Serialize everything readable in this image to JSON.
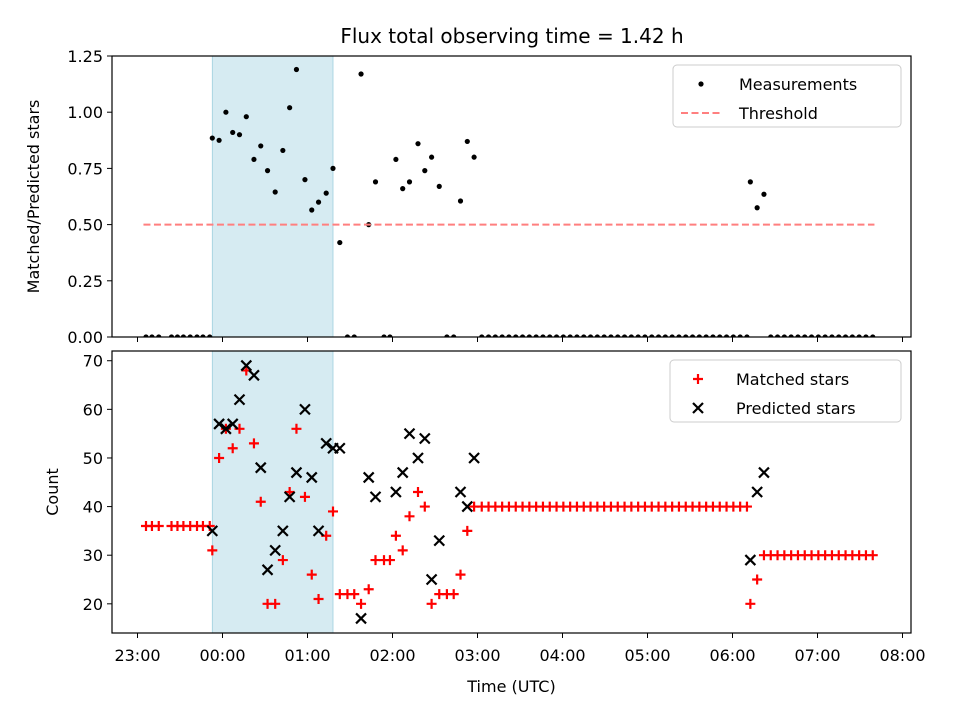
{
  "title": "Flux total observing time = 1.42 h",
  "chart_data": [
    {
      "type": "scatter",
      "panel": "top",
      "ylabel": "Matched/Predicted stars",
      "xlabel": "",
      "xlim": [
        -1.3,
        8.1
      ],
      "ylim": [
        0,
        1.25
      ],
      "yticks": [
        0,
        0.25,
        0.5,
        0.75,
        1.0,
        1.25
      ],
      "ytick_labels": [
        "0.00",
        "0.25",
        "0.50",
        "0.75",
        "1.00",
        "1.25"
      ],
      "shaded_span": [
        -0.12,
        1.3
      ],
      "legend_placement": "top-right",
      "series": [
        {
          "name": "Measurements",
          "marker": "dot",
          "color": "#000000",
          "points": [
            [
              -0.9,
              0
            ],
            [
              -0.83,
              0
            ],
            [
              -0.75,
              0
            ],
            [
              -0.6,
              0
            ],
            [
              -0.53,
              0
            ],
            [
              -0.46,
              0
            ],
            [
              -0.38,
              0
            ],
            [
              -0.3,
              0
            ],
            [
              -0.23,
              0
            ],
            [
              -0.15,
              0
            ],
            [
              -0.12,
              0.885
            ],
            [
              -0.04,
              0.875
            ],
            [
              0.04,
              1.0
            ],
            [
              0.12,
              0.91
            ],
            [
              0.2,
              0.9
            ],
            [
              0.28,
              0.98
            ],
            [
              0.37,
              0.79
            ],
            [
              0.45,
              0.85
            ],
            [
              0.53,
              0.74
            ],
            [
              0.62,
              0.645
            ],
            [
              0.71,
              0.83
            ],
            [
              0.79,
              1.02
            ],
            [
              0.87,
              1.19
            ],
            [
              0.97,
              0.7
            ],
            [
              1.05,
              0.565
            ],
            [
              1.13,
              0.6
            ],
            [
              1.22,
              0.64
            ],
            [
              1.3,
              0.75
            ],
            [
              1.38,
              0.42
            ],
            [
              1.47,
              0
            ],
            [
              1.55,
              0
            ],
            [
              1.63,
              1.17
            ],
            [
              1.72,
              0.5
            ],
            [
              1.8,
              0.69
            ],
            [
              1.9,
              0
            ],
            [
              1.97,
              0
            ],
            [
              2.04,
              0.79
            ],
            [
              2.12,
              0.66
            ],
            [
              2.2,
              0.69
            ],
            [
              2.3,
              0.86
            ],
            [
              2.38,
              0.74
            ],
            [
              2.46,
              0.8
            ],
            [
              2.55,
              0.67
            ],
            [
              2.64,
              0
            ],
            [
              2.72,
              0
            ],
            [
              2.8,
              0.605
            ],
            [
              2.88,
              0.87
            ],
            [
              2.96,
              0.8
            ],
            [
              3.05,
              0
            ],
            [
              3.13,
              0
            ],
            [
              3.21,
              0
            ],
            [
              3.29,
              0
            ],
            [
              3.37,
              0
            ],
            [
              3.45,
              0
            ],
            [
              3.53,
              0
            ],
            [
              3.61,
              0
            ],
            [
              3.69,
              0
            ],
            [
              3.77,
              0
            ],
            [
              3.85,
              0
            ],
            [
              3.93,
              0
            ],
            [
              4.01,
              0
            ],
            [
              4.09,
              0
            ],
            [
              4.17,
              0
            ],
            [
              4.25,
              0
            ],
            [
              4.33,
              0
            ],
            [
              4.41,
              0
            ],
            [
              4.49,
              0
            ],
            [
              4.57,
              0
            ],
            [
              4.65,
              0
            ],
            [
              4.73,
              0
            ],
            [
              4.81,
              0
            ],
            [
              4.89,
              0
            ],
            [
              4.97,
              0
            ],
            [
              5.05,
              0
            ],
            [
              5.13,
              0
            ],
            [
              5.21,
              0
            ],
            [
              5.29,
              0
            ],
            [
              5.37,
              0
            ],
            [
              5.45,
              0
            ],
            [
              5.53,
              0
            ],
            [
              5.61,
              0
            ],
            [
              5.69,
              0
            ],
            [
              5.77,
              0
            ],
            [
              5.85,
              0
            ],
            [
              5.93,
              0
            ],
            [
              6.01,
              0
            ],
            [
              6.09,
              0
            ],
            [
              6.17,
              0
            ],
            [
              6.21,
              0.69
            ],
            [
              6.29,
              0.575
            ],
            [
              6.37,
              0.635
            ],
            [
              6.45,
              0
            ],
            [
              6.53,
              0
            ],
            [
              6.61,
              0
            ],
            [
              6.69,
              0
            ],
            [
              6.77,
              0
            ],
            [
              6.85,
              0
            ],
            [
              6.93,
              0
            ],
            [
              7.01,
              0
            ],
            [
              7.09,
              0
            ],
            [
              7.17,
              0
            ],
            [
              7.25,
              0
            ],
            [
              7.33,
              0
            ],
            [
              7.41,
              0
            ],
            [
              7.49,
              0
            ],
            [
              7.57,
              0
            ],
            [
              7.65,
              0
            ]
          ]
        },
        {
          "name": "Threshold",
          "marker": "dashed-line",
          "color": "#ff7f7f",
          "points": [
            [
              -0.93,
              0.5
            ],
            [
              7.67,
              0.5
            ]
          ]
        }
      ]
    },
    {
      "type": "scatter",
      "panel": "bottom",
      "ylabel": "Count",
      "xlabel": "Time (UTC)",
      "xlim": [
        -1.3,
        8.1
      ],
      "ylim": [
        14,
        72
      ],
      "yticks": [
        20,
        30,
        40,
        50,
        60,
        70
      ],
      "ytick_labels": [
        "20",
        "30",
        "40",
        "50",
        "60",
        "70"
      ],
      "xticks": [
        -1,
        0,
        1,
        2,
        3,
        4,
        5,
        6,
        7,
        8
      ],
      "xtick_labels": [
        "23:00",
        "00:00",
        "01:00",
        "02:00",
        "03:00",
        "04:00",
        "05:00",
        "06:00",
        "07:00",
        "08:00"
      ],
      "shaded_span": [
        -0.12,
        1.3
      ],
      "legend_placement": "top-right",
      "series": [
        {
          "name": "Matched stars",
          "marker": "plus",
          "color": "#ff0000",
          "points": [
            [
              -0.9,
              36
            ],
            [
              -0.83,
              36
            ],
            [
              -0.75,
              36
            ],
            [
              -0.6,
              36
            ],
            [
              -0.53,
              36
            ],
            [
              -0.46,
              36
            ],
            [
              -0.38,
              36
            ],
            [
              -0.3,
              36
            ],
            [
              -0.23,
              36
            ],
            [
              -0.15,
              36
            ],
            [
              -0.12,
              31
            ],
            [
              -0.04,
              50
            ],
            [
              0.04,
              56
            ],
            [
              0.12,
              52
            ],
            [
              0.2,
              56
            ],
            [
              0.28,
              68
            ],
            [
              0.37,
              53
            ],
            [
              0.45,
              41
            ],
            [
              0.53,
              20
            ],
            [
              0.62,
              20
            ],
            [
              0.71,
              29
            ],
            [
              0.79,
              43
            ],
            [
              0.87,
              56
            ],
            [
              0.97,
              42
            ],
            [
              1.05,
              26
            ],
            [
              1.13,
              21
            ],
            [
              1.22,
              34
            ],
            [
              1.3,
              39
            ],
            [
              1.38,
              22
            ],
            [
              1.47,
              22
            ],
            [
              1.55,
              22
            ],
            [
              1.63,
              20
            ],
            [
              1.72,
              23
            ],
            [
              1.8,
              29
            ],
            [
              1.9,
              29
            ],
            [
              1.97,
              29
            ],
            [
              2.04,
              34
            ],
            [
              2.12,
              31
            ],
            [
              2.2,
              38
            ],
            [
              2.3,
              43
            ],
            [
              2.38,
              40
            ],
            [
              2.46,
              20
            ],
            [
              2.55,
              22
            ],
            [
              2.64,
              22
            ],
            [
              2.72,
              22
            ],
            [
              2.8,
              26
            ],
            [
              2.88,
              35
            ],
            [
              2.96,
              40
            ],
            [
              3.05,
              40
            ],
            [
              3.13,
              40
            ],
            [
              3.21,
              40
            ],
            [
              3.29,
              40
            ],
            [
              3.37,
              40
            ],
            [
              3.45,
              40
            ],
            [
              3.53,
              40
            ],
            [
              3.61,
              40
            ],
            [
              3.69,
              40
            ],
            [
              3.77,
              40
            ],
            [
              3.85,
              40
            ],
            [
              3.93,
              40
            ],
            [
              4.01,
              40
            ],
            [
              4.09,
              40
            ],
            [
              4.17,
              40
            ],
            [
              4.25,
              40
            ],
            [
              4.33,
              40
            ],
            [
              4.41,
              40
            ],
            [
              4.49,
              40
            ],
            [
              4.57,
              40
            ],
            [
              4.65,
              40
            ],
            [
              4.73,
              40
            ],
            [
              4.81,
              40
            ],
            [
              4.89,
              40
            ],
            [
              4.97,
              40
            ],
            [
              5.05,
              40
            ],
            [
              5.13,
              40
            ],
            [
              5.21,
              40
            ],
            [
              5.29,
              40
            ],
            [
              5.37,
              40
            ],
            [
              5.45,
              40
            ],
            [
              5.53,
              40
            ],
            [
              5.61,
              40
            ],
            [
              5.69,
              40
            ],
            [
              5.77,
              40
            ],
            [
              5.85,
              40
            ],
            [
              5.93,
              40
            ],
            [
              6.01,
              40
            ],
            [
              6.09,
              40
            ],
            [
              6.17,
              40
            ],
            [
              6.21,
              20
            ],
            [
              6.29,
              25
            ],
            [
              6.37,
              30
            ],
            [
              6.45,
              30
            ],
            [
              6.53,
              30
            ],
            [
              6.61,
              30
            ],
            [
              6.69,
              30
            ],
            [
              6.77,
              30
            ],
            [
              6.85,
              30
            ],
            [
              6.93,
              30
            ],
            [
              7.01,
              30
            ],
            [
              7.09,
              30
            ],
            [
              7.17,
              30
            ],
            [
              7.25,
              30
            ],
            [
              7.33,
              30
            ],
            [
              7.41,
              30
            ],
            [
              7.49,
              30
            ],
            [
              7.57,
              30
            ],
            [
              7.65,
              30
            ]
          ]
        },
        {
          "name": "Predicted stars",
          "marker": "x",
          "color": "#000000",
          "points": [
            [
              -0.12,
              35
            ],
            [
              -0.04,
              57
            ],
            [
              0.04,
              56
            ],
            [
              0.12,
              57
            ],
            [
              0.2,
              62
            ],
            [
              0.28,
              69
            ],
            [
              0.37,
              67
            ],
            [
              0.45,
              48
            ],
            [
              0.53,
              27
            ],
            [
              0.62,
              31
            ],
            [
              0.71,
              35
            ],
            [
              0.79,
              42
            ],
            [
              0.87,
              47
            ],
            [
              0.97,
              60
            ],
            [
              1.05,
              46
            ],
            [
              1.13,
              35
            ],
            [
              1.22,
              53
            ],
            [
              1.3,
              52
            ],
            [
              1.38,
              52
            ],
            [
              1.63,
              17
            ],
            [
              1.72,
              46
            ],
            [
              1.8,
              42
            ],
            [
              2.04,
              43
            ],
            [
              2.12,
              47
            ],
            [
              2.2,
              55
            ],
            [
              2.3,
              50
            ],
            [
              2.38,
              54
            ],
            [
              2.46,
              25
            ],
            [
              2.55,
              33
            ],
            [
              2.8,
              43
            ],
            [
              2.88,
              40
            ],
            [
              2.96,
              50
            ],
            [
              6.21,
              29
            ],
            [
              6.29,
              43
            ],
            [
              6.37,
              47
            ]
          ]
        }
      ]
    }
  ]
}
